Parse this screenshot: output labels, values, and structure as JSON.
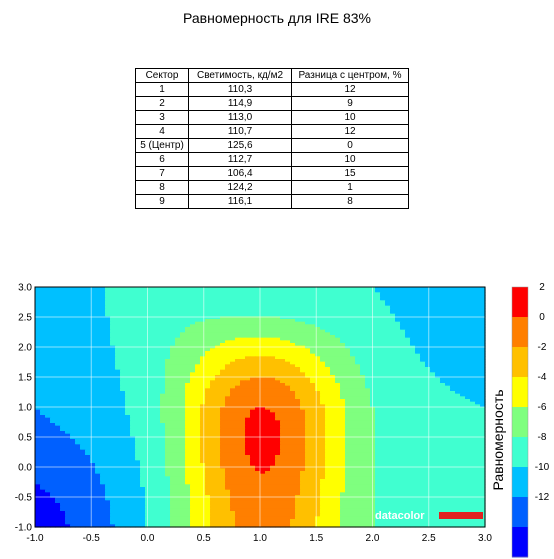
{
  "title": "Равномерность для IRE 83%",
  "table": {
    "headers": [
      "Сектор",
      "Светимость, кд/м2",
      "Разница с центром, %"
    ],
    "rows": [
      [
        "1",
        "110,3",
        "12"
      ],
      [
        "2",
        "114,9",
        "9"
      ],
      [
        "3",
        "113,0",
        "10"
      ],
      [
        "4",
        "110,7",
        "12"
      ],
      [
        "5 (Центр)",
        "125,6",
        "0"
      ],
      [
        "6",
        "112,7",
        "10"
      ],
      [
        "7",
        "106,4",
        "15"
      ],
      [
        "8",
        "124,2",
        "1"
      ],
      [
        "9",
        "116,1",
        "8"
      ]
    ]
  },
  "logo": "datacolor",
  "chart_data": {
    "type": "heatmap",
    "title": "",
    "xlabel": "",
    "ylabel": "",
    "xlim": [
      -1.0,
      3.0
    ],
    "ylim": [
      -1.0,
      3.0
    ],
    "x_ticks": [
      "-1.0",
      "-0.5",
      "0.0",
      "0.5",
      "1.0",
      "1.5",
      "2.0",
      "2.5",
      "3.0"
    ],
    "y_ticks": [
      "3.0",
      "2.5",
      "2.0",
      "1.5",
      "1.0",
      "0.5",
      "0.0",
      "-0.5",
      "-1.0"
    ],
    "grid": true,
    "colorbar": {
      "label": "Равномерность",
      "ticks": [
        "2",
        "0",
        "-2",
        "-4",
        "-6",
        "-8",
        "-10",
        "-12"
      ],
      "levels": [
        2,
        0,
        -2,
        -4,
        -6,
        -8,
        -10,
        -12,
        -14
      ],
      "colors": [
        "#ff0000",
        "#ff7f00",
        "#ffc000",
        "#ffff00",
        "#7fff7f",
        "#40ffd0",
        "#00c0ff",
        "#0060ff",
        "#0000ff"
      ]
    },
    "grid_x": [
      -1.0,
      0.0,
      1.0,
      2.0,
      3.0
    ],
    "grid_y": [
      3.0,
      1.0,
      -1.0
    ],
    "values": [
      [
        -12,
        -9,
        -10,
        -10,
        -12
      ],
      [
        -12,
        -9,
        0,
        -8,
        -10
      ],
      [
        -15,
        -10,
        -1,
        -8,
        -8
      ]
    ]
  }
}
